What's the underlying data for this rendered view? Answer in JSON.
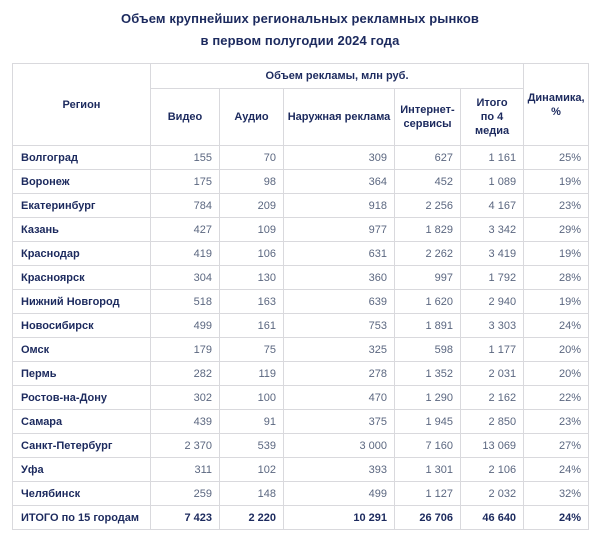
{
  "title": {
    "line1": "Объем крупнейших региональных рекламных рынков",
    "line2": "в первом полугодии 2024 года"
  },
  "table": {
    "region_header": "Регион",
    "group_header": "Объем рекламы, млн руб.",
    "sub_headers": {
      "video": "Видео",
      "audio": "Аудио",
      "outdoor": "Наружная реклама",
      "internet": "Интернет-\nсервисы",
      "total": "Итого\nпо 4\nмедиа"
    },
    "dynamics_header": "Динамика,\n%"
  },
  "colors": {
    "navy_text": "#1c2a5e",
    "value_text": "#5b6780",
    "grid_border": "#d9d9dd",
    "background": "#ffffff"
  },
  "chart_data": {
    "type": "table",
    "title": "Объем крупнейших региональных рекламных рынков в первом полугодии 2024 года",
    "group_header": "Объем рекламы, млн руб.",
    "columns": [
      "Регион",
      "Видео",
      "Аудио",
      "Наружная реклама",
      "Интернет-сервисы",
      "Итого по 4 медиа",
      "Динамика, %"
    ],
    "rows": [
      [
        "Волгоград",
        155,
        70,
        309,
        627,
        1161,
        "25%"
      ],
      [
        "Воронеж",
        175,
        98,
        364,
        452,
        1089,
        "19%"
      ],
      [
        "Екатеринбург",
        784,
        209,
        918,
        2256,
        4167,
        "23%"
      ],
      [
        "Казань",
        427,
        109,
        977,
        1829,
        3342,
        "29%"
      ],
      [
        "Краснодар",
        419,
        106,
        631,
        2262,
        3419,
        "19%"
      ],
      [
        "Красноярск",
        304,
        130,
        360,
        997,
        1792,
        "28%"
      ],
      [
        "Нижний Новгород",
        518,
        163,
        639,
        1620,
        2940,
        "19%"
      ],
      [
        "Новосибирск",
        499,
        161,
        753,
        1891,
        3303,
        "24%"
      ],
      [
        "Омск",
        179,
        75,
        325,
        598,
        1177,
        "20%"
      ],
      [
        "Пермь",
        282,
        119,
        278,
        1352,
        2031,
        "20%"
      ],
      [
        "Ростов-на-Дону",
        302,
        100,
        470,
        1290,
        2162,
        "22%"
      ],
      [
        "Самара",
        439,
        91,
        375,
        1945,
        2850,
        "23%"
      ],
      [
        "Санкт-Петербург",
        2370,
        539,
        3000,
        7160,
        13069,
        "27%"
      ],
      [
        "Уфа",
        311,
        102,
        393,
        1301,
        2106,
        "24%"
      ],
      [
        "Челябинск",
        259,
        148,
        499,
        1127,
        2032,
        "32%"
      ]
    ],
    "total_row": [
      "ИТОГО по 15 городам",
      7423,
      2220,
      10291,
      26706,
      46640,
      "24%"
    ]
  }
}
